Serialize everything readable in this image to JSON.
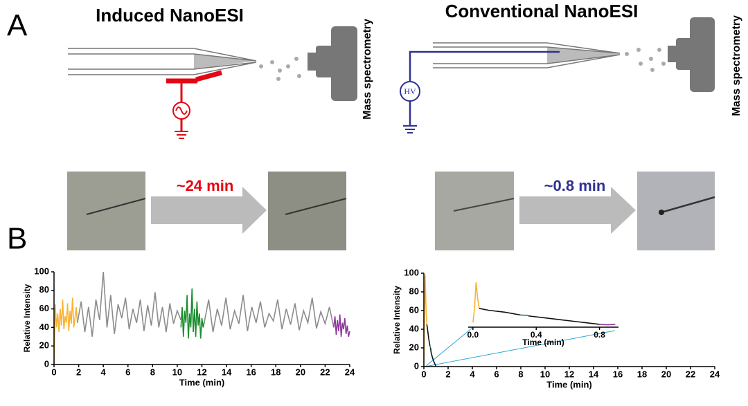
{
  "panels": {
    "a": "A",
    "b": "B"
  },
  "diagram": {
    "left_title": "Induced NanoESI",
    "right_title": "Conventional NanoESI",
    "left_ms": "Mass spectrometry",
    "right_ms": "Mass spectrometry",
    "hv": "HV",
    "left_time": "~24 min",
    "right_time": "~0.8 min"
  },
  "chart_data": [
    {
      "type": "line",
      "xlabel": "Time (min)",
      "ylabel": "Relative Intensity",
      "xlim": [
        0,
        24
      ],
      "ylim": [
        0,
        100
      ],
      "xticks": [
        0,
        2,
        4,
        6,
        8,
        10,
        12,
        14,
        16,
        18,
        20,
        22,
        24
      ],
      "yticks": [
        0,
        20,
        40,
        60,
        80,
        100
      ],
      "series": [
        {
          "color": "#f9b233",
          "x": [
            0,
            0.1,
            0.2,
            0.3,
            0.4,
            0.5,
            0.6,
            0.7,
            0.8,
            0.9,
            1.0,
            1.1,
            1.2,
            1.3,
            1.4,
            1.5,
            1.6,
            1.7,
            1.8,
            1.9
          ],
          "values": [
            0,
            65,
            40,
            55,
            35,
            60,
            42,
            70,
            38,
            52,
            45,
            66,
            36,
            58,
            44,
            72,
            40,
            50,
            62,
            45
          ]
        },
        {
          "color": "#8c8c8c",
          "x": [
            1.9,
            2.2,
            2.5,
            2.8,
            3.1,
            3.4,
            3.7,
            4.0,
            4.3,
            4.6,
            4.9,
            5.2,
            5.5,
            5.8,
            6.1,
            6.4,
            6.7,
            7.0,
            7.3,
            7.6,
            7.9,
            8.2,
            8.5,
            8.8,
            9.1,
            9.4,
            9.7,
            10.0,
            10.3
          ],
          "values": [
            45,
            68,
            35,
            62,
            30,
            70,
            48,
            100,
            40,
            75,
            33,
            65,
            50,
            72,
            38,
            60,
            45,
            70,
            36,
            64,
            42,
            78,
            40,
            62,
            35,
            66,
            44,
            58,
            48
          ]
        },
        {
          "color": "#1a8f2e",
          "x": [
            10.3,
            10.4,
            10.5,
            10.6,
            10.7,
            10.8,
            10.9,
            11.0,
            11.1,
            11.2,
            11.3,
            11.4,
            11.5,
            11.6,
            11.7,
            11.8,
            11.9,
            12.0,
            12.1,
            12.2
          ],
          "values": [
            40,
            62,
            30,
            58,
            45,
            75,
            28,
            55,
            40,
            82,
            35,
            60,
            30,
            68,
            42,
            55,
            28,
            50,
            40,
            46
          ]
        },
        {
          "color": "#8c8c8c",
          "x": [
            12.2,
            12.55,
            12.9,
            13.25,
            13.6,
            13.95,
            14.3,
            14.65,
            15.0,
            15.35,
            15.7,
            16.05,
            16.4,
            16.75,
            17.1,
            17.45,
            17.8,
            18.15,
            18.5,
            18.85,
            19.2,
            19.55,
            19.9,
            20.25,
            20.6,
            20.95,
            21.3,
            21.65,
            22.0,
            22.35,
            22.7
          ],
          "values": [
            46,
            70,
            35,
            60,
            42,
            72,
            38,
            58,
            44,
            75,
            36,
            62,
            45,
            68,
            40,
            55,
            47,
            70,
            38,
            60,
            43,
            66,
            37,
            58,
            45,
            72,
            39,
            57,
            44,
            62,
            40
          ]
        },
        {
          "color": "#8e3a9d",
          "x": [
            22.7,
            22.8,
            22.9,
            23.0,
            23.1,
            23.2,
            23.3,
            23.4,
            23.5,
            23.6,
            23.7,
            23.8,
            23.9,
            24.0
          ],
          "values": [
            40,
            52,
            32,
            48,
            36,
            54,
            30,
            45,
            38,
            50,
            33,
            42,
            30,
            36
          ]
        }
      ]
    },
    {
      "type": "line",
      "xlabel": "Time (min)",
      "ylabel": "Relative Intensity",
      "xlim": [
        0,
        24
      ],
      "ylim": [
        0,
        100
      ],
      "xticks": [
        0,
        2,
        4,
        6,
        8,
        10,
        12,
        14,
        16,
        18,
        20,
        22,
        24
      ],
      "yticks": [
        0,
        20,
        40,
        60,
        80,
        100
      ],
      "series": [
        {
          "color": "#f9b233",
          "x": [
            0,
            0.05,
            0.1,
            0.15,
            0.2,
            0.25
          ],
          "values": [
            0,
            60,
            98,
            75,
            55,
            45
          ]
        },
        {
          "color": "#111111",
          "x": [
            0.25,
            0.4,
            0.5
          ],
          "values": [
            45,
            30,
            22
          ]
        },
        {
          "color": "#1a8f2e",
          "x": [
            0.5,
            0.55
          ],
          "values": [
            22,
            20
          ]
        },
        {
          "color": "#111111",
          "x": [
            0.55,
            0.6,
            0.7,
            0.8,
            0.9,
            1.0
          ],
          "values": [
            20,
            15,
            10,
            6,
            3,
            0.5
          ]
        }
      ]
    },
    {
      "type": "line",
      "xlabel": "Time (min)",
      "xlim": [
        -0.03,
        0.92
      ],
      "ylim": [
        40,
        95
      ],
      "xticks": [
        {
          "value": 0,
          "label": "0.0"
        },
        0.4,
        0.8
      ],
      "series": [
        {
          "color": "#f9b233",
          "x": [
            0,
            0.01,
            0.02,
            0.03,
            0.04
          ],
          "values": [
            45,
            60,
            88,
            70,
            60
          ]
        },
        {
          "color": "#111111",
          "x": [
            0.04,
            0.1,
            0.2,
            0.3
          ],
          "values": [
            60,
            58,
            56,
            53
          ]
        },
        {
          "color": "#1a8f2e",
          "x": [
            0.3,
            0.35
          ],
          "values": [
            53,
            52.5
          ]
        },
        {
          "color": "#111111",
          "x": [
            0.35,
            0.45,
            0.55,
            0.65,
            0.75,
            0.8
          ],
          "values": [
            52,
            50,
            48,
            46,
            44,
            43
          ]
        },
        {
          "color": "#8e3a9d",
          "x": [
            0.8,
            0.85,
            0.9
          ],
          "values": [
            43,
            42.5,
            43
          ]
        }
      ]
    }
  ]
}
